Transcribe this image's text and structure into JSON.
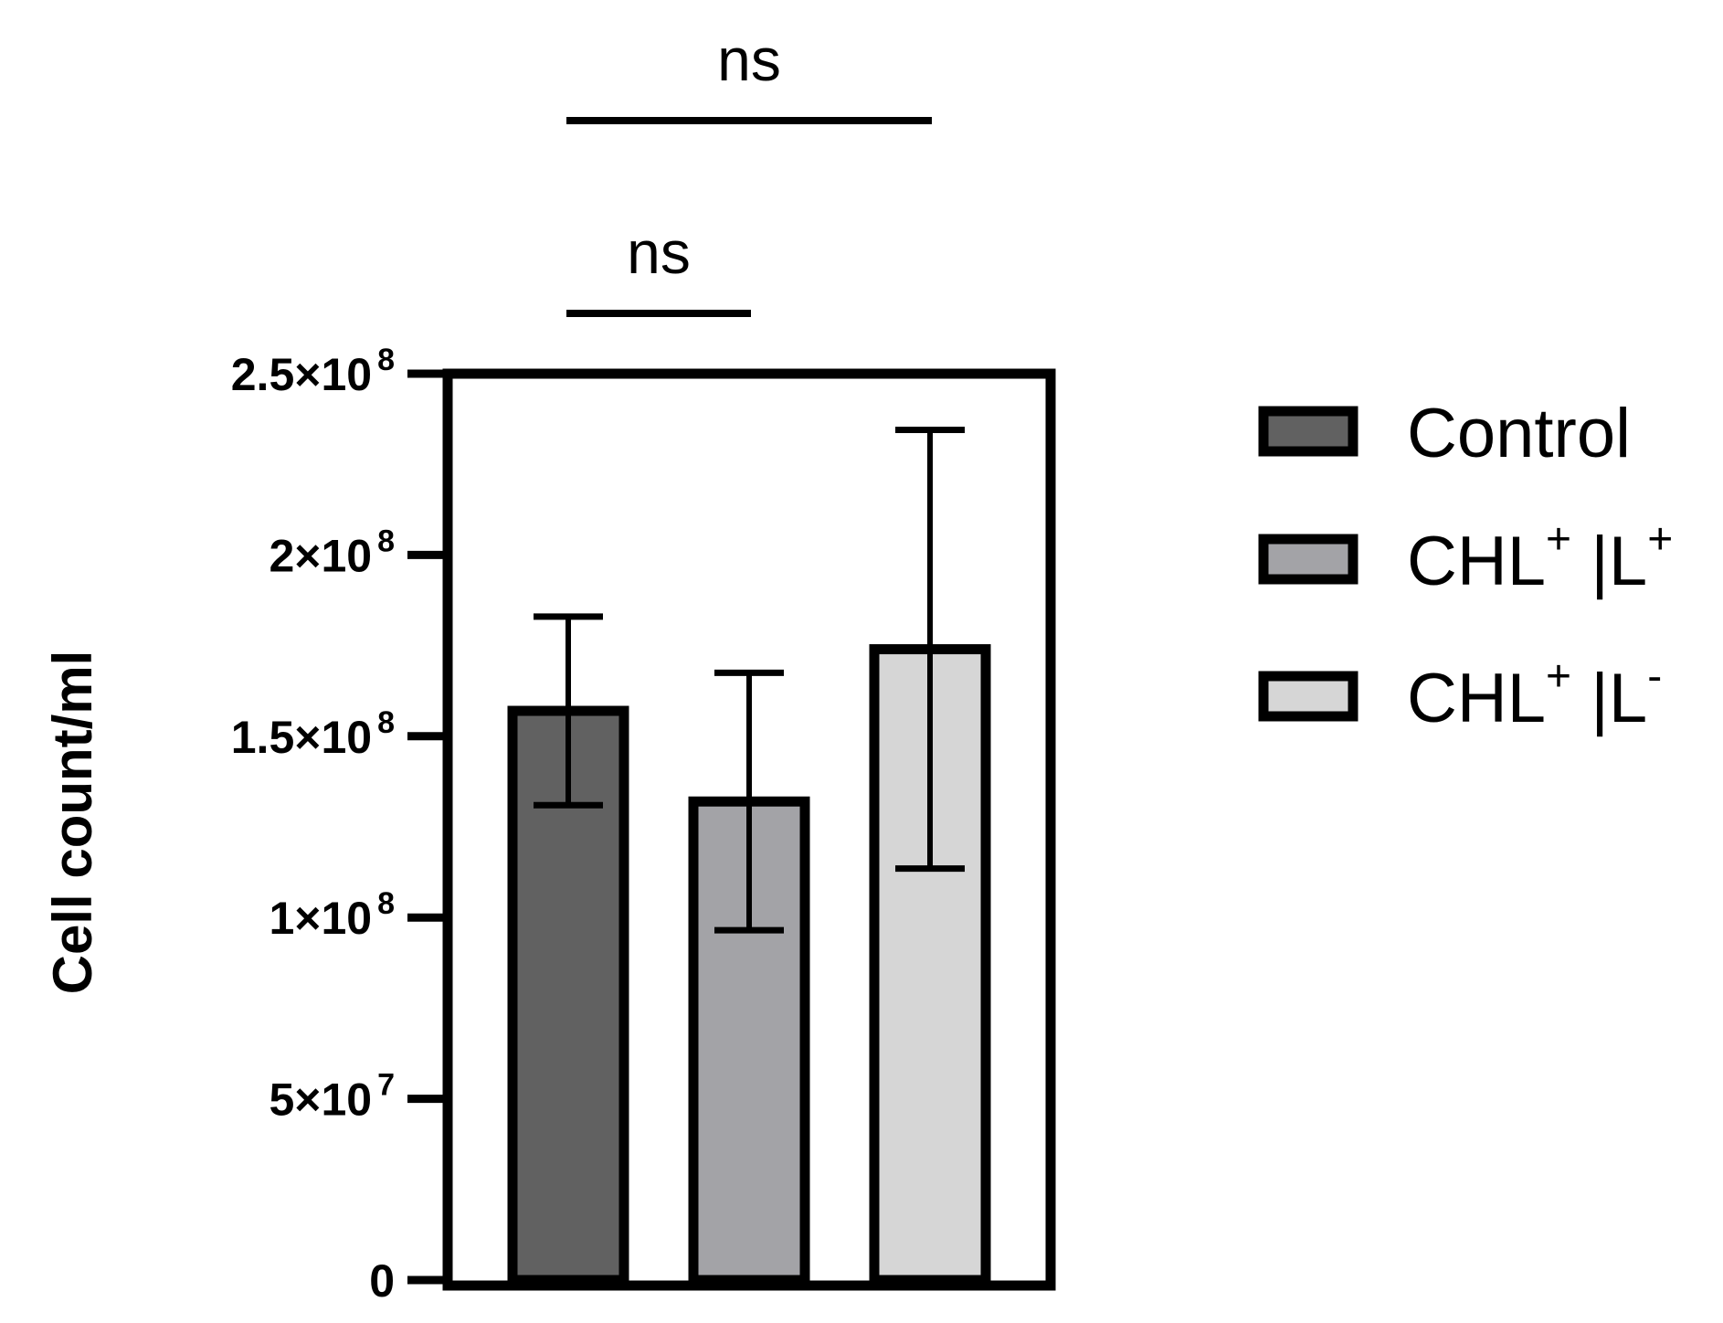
{
  "chart_data": {
    "type": "bar",
    "categories": [
      "Control",
      "CHL+ IL+",
      "CHL+ IL-"
    ],
    "series": [
      {
        "values": [
          157000000,
          132000000,
          174000000
        ],
        "error": [
          26000000,
          35500000,
          60500000
        ],
        "colors": [
          "#616161",
          "#a3a3a7",
          "#d6d6d6"
        ]
      }
    ],
    "xlabel": "",
    "ylabel": "Cell count/ml",
    "ylim": [
      0,
      250000000
    ],
    "y_ticks": [
      {
        "value": 0,
        "mant": "0",
        "exp": ""
      },
      {
        "value": 50000000,
        "mant": "5×10",
        "exp": "7"
      },
      {
        "value": 100000000,
        "mant": "1×10",
        "exp": "8"
      },
      {
        "value": 150000000,
        "mant": "1.5×10",
        "exp": "8"
      },
      {
        "value": 200000000,
        "mant": "2×10",
        "exp": "8"
      },
      {
        "value": 250000000,
        "mant": "2.5×10",
        "exp": "8"
      }
    ],
    "legend": {
      "position": "right",
      "entries": [
        {
          "base": "Control",
          "sup": "",
          "mid": "",
          "sup2": ""
        },
        {
          "base": "CHL",
          "sup": "+",
          "mid": " |L",
          "sup2": "+"
        },
        {
          "base": "CHL",
          "sup": "+",
          "mid": " |L",
          "sup2": "-"
        }
      ]
    },
    "significance": [
      {
        "from": 0,
        "to": 1,
        "label": "ns"
      },
      {
        "from": 0,
        "to": 2,
        "label": "ns"
      }
    ],
    "grid": false
  }
}
